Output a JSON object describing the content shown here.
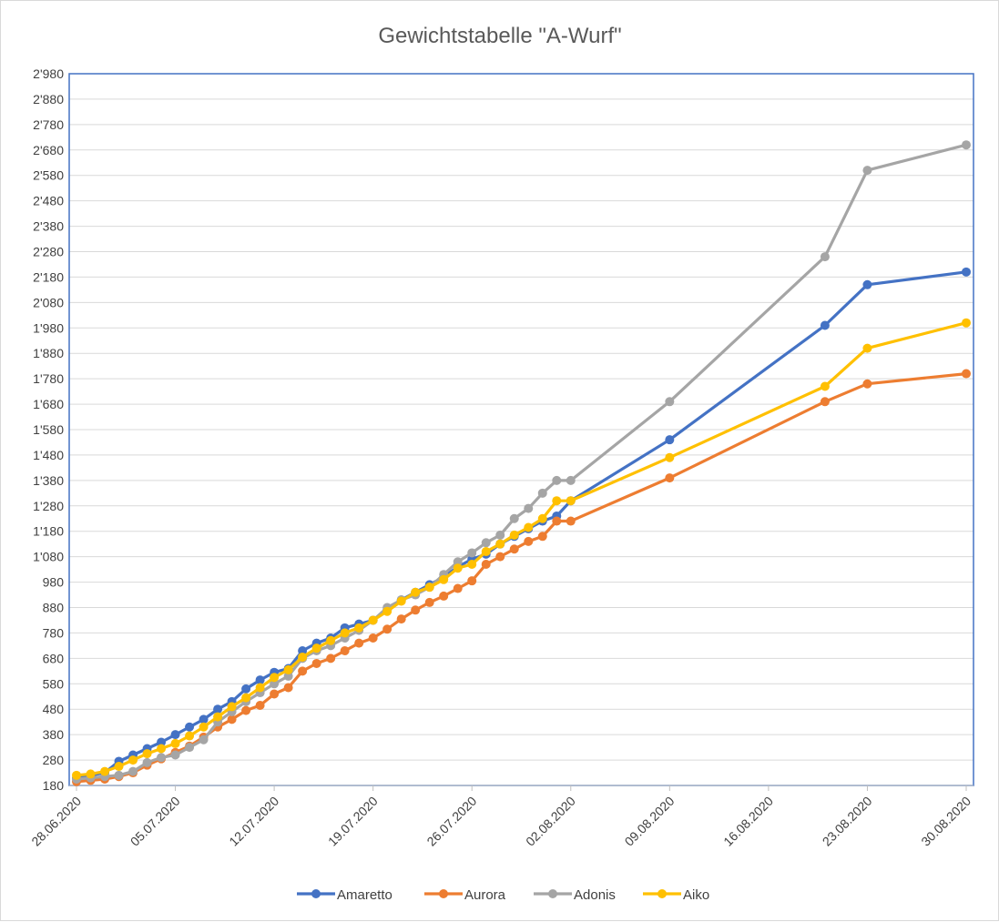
{
  "chart_data": {
    "type": "line",
    "title": "Gewichtstabelle \"A-Wurf\"",
    "xlabel": "",
    "ylabel": "",
    "ylim": [
      180,
      2980
    ],
    "yticks": [
      "180",
      "280",
      "380",
      "480",
      "580",
      "680",
      "780",
      "880",
      "980",
      "1'080",
      "1'180",
      "1'280",
      "1'380",
      "1'480",
      "1'580",
      "1'680",
      "1'780",
      "1'880",
      "1'980",
      "2'080",
      "2'180",
      "2'280",
      "2'380",
      "2'480",
      "2'580",
      "2'680",
      "2'780",
      "2'880",
      "2'980"
    ],
    "xticks": [
      "28.06.2020",
      "05.07.2020",
      "12.07.2020",
      "19.07.2020",
      "26.07.2020",
      "02.08.2020",
      "09.08.2020",
      "16.08.2020",
      "23.08.2020",
      "30.08.2020"
    ],
    "xlim": [
      "28.06.2020",
      "30.08.2020"
    ],
    "grid": "horizontal",
    "legend": "bottom",
    "x": [
      "28.06.2020",
      "29.06.2020",
      "30.06.2020",
      "01.07.2020",
      "02.07.2020",
      "03.07.2020",
      "04.07.2020",
      "05.07.2020",
      "06.07.2020",
      "07.07.2020",
      "08.07.2020",
      "09.07.2020",
      "10.07.2020",
      "11.07.2020",
      "12.07.2020",
      "13.07.2020",
      "14.07.2020",
      "15.07.2020",
      "16.07.2020",
      "17.07.2020",
      "18.07.2020",
      "19.07.2020",
      "20.07.2020",
      "21.07.2020",
      "22.07.2020",
      "23.07.2020",
      "24.07.2020",
      "25.07.2020",
      "26.07.2020",
      "27.07.2020",
      "28.07.2020",
      "29.07.2020",
      "30.07.2020",
      "31.07.2020",
      "01.08.2020",
      "02.08.2020",
      "09.08.2020",
      "20.08.2020",
      "23.08.2020",
      "30.08.2020"
    ],
    "series": [
      {
        "name": "Amaretto",
        "color": "#4472C4",
        "values": [
          210,
          220,
          230,
          275,
          300,
          325,
          350,
          380,
          410,
          440,
          480,
          510,
          560,
          595,
          625,
          640,
          710,
          740,
          760,
          800,
          815,
          830,
          870,
          910,
          940,
          970,
          1000,
          1040,
          1070,
          1090,
          1130,
          1160,
          1190,
          1220,
          1240,
          1300,
          1540,
          1990,
          2150,
          2200
        ]
      },
      {
        "name": "Aurora",
        "color": "#ED7D31",
        "values": [
          195,
          200,
          205,
          215,
          230,
          260,
          285,
          310,
          335,
          370,
          410,
          440,
          475,
          495,
          540,
          565,
          630,
          660,
          680,
          710,
          740,
          760,
          795,
          835,
          870,
          900,
          925,
          955,
          985,
          1050,
          1080,
          1110,
          1140,
          1160,
          1220,
          1220,
          1390,
          1690,
          1760,
          1800
        ]
      },
      {
        "name": "Adonis",
        "color": "#A5A5A5",
        "values": [
          205,
          210,
          215,
          220,
          235,
          270,
          290,
          300,
          330,
          360,
          430,
          470,
          510,
          545,
          580,
          610,
          680,
          710,
          730,
          760,
          790,
          830,
          880,
          910,
          930,
          960,
          1010,
          1060,
          1095,
          1135,
          1165,
          1230,
          1270,
          1330,
          1380,
          1380,
          1690,
          2260,
          2600,
          2700
        ]
      },
      {
        "name": "Aiko",
        "color": "#FFC000",
        "values": [
          220,
          225,
          235,
          255,
          280,
          305,
          325,
          345,
          375,
          410,
          450,
          490,
          525,
          565,
          605,
          635,
          685,
          720,
          750,
          780,
          800,
          830,
          865,
          905,
          940,
          960,
          990,
          1035,
          1050,
          1100,
          1130,
          1165,
          1195,
          1230,
          1300,
          1300,
          1470,
          1750,
          1900,
          2000
        ]
      }
    ]
  }
}
